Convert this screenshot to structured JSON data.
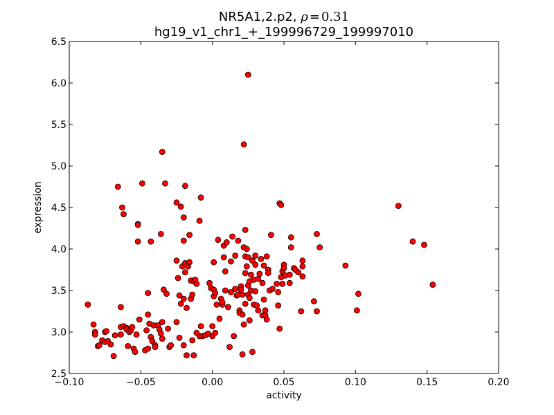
{
  "chart_data": {
    "type": "scatter",
    "title": {
      "prefix": "NR5A1,2.p2, ",
      "rho_symbol": "ρ",
      "equals": "=",
      "rho_value": "0.31"
    },
    "subtitle": "hg19_v1_chr1_+_199996729_199997010",
    "xlabel": "activity",
    "ylabel": "expression",
    "xlim": [
      -0.1,
      0.2
    ],
    "ylim": [
      2.5,
      6.5
    ],
    "xticks": [
      -0.1,
      -0.05,
      0.0,
      0.05,
      0.1,
      0.15,
      0.2
    ],
    "xtick_labels": [
      "−0.10",
      "−0.05",
      "0.00",
      "0.05",
      "0.10",
      "0.15",
      "0.20"
    ],
    "yticks": [
      2.5,
      3.0,
      3.5,
      4.0,
      4.5,
      5.0,
      5.5,
      6.0,
      6.5
    ],
    "ytick_labels": [
      "2.5",
      "3.0",
      "3.5",
      "4.0",
      "4.5",
      "5.0",
      "5.5",
      "6.0",
      "6.5"
    ],
    "grid": false,
    "legend": false,
    "colors": {
      "marker_fill": "#ff0000",
      "marker_edge": "#000000",
      "axes": "#000000",
      "background": "#ffffff"
    },
    "points": [
      [
        -0.087,
        3.33
      ],
      [
        -0.083,
        3.09
      ],
      [
        -0.082,
        3.0
      ],
      [
        -0.082,
        2.97
      ],
      [
        -0.08,
        2.83
      ],
      [
        -0.079,
        2.84
      ],
      [
        -0.077,
        2.9
      ],
      [
        -0.075,
        2.88
      ],
      [
        -0.075,
        3.0
      ],
      [
        -0.074,
        3.01
      ],
      [
        -0.073,
        2.89
      ],
      [
        -0.071,
        2.85
      ],
      [
        -0.069,
        2.71
      ],
      [
        -0.068,
        2.96
      ],
      [
        -0.066,
        4.75
      ],
      [
        -0.064,
        2.97
      ],
      [
        -0.064,
        3.3
      ],
      [
        -0.064,
        3.06
      ],
      [
        -0.063,
        4.5
      ],
      [
        -0.062,
        4.42
      ],
      [
        -0.062,
        3.07
      ],
      [
        -0.06,
        3.05
      ],
      [
        -0.06,
        3.03
      ],
      [
        -0.059,
        2.83
      ],
      [
        -0.058,
        3.0
      ],
      [
        -0.057,
        3.02
      ],
      [
        -0.056,
        3.06
      ],
      [
        -0.055,
        2.8
      ],
      [
        -0.054,
        2.76
      ],
      [
        -0.053,
        2.97
      ],
      [
        -0.052,
        4.3
      ],
      [
        -0.052,
        4.29
      ],
      [
        -0.052,
        4.09
      ],
      [
        -0.051,
        3.15
      ],
      [
        -0.049,
        4.79
      ],
      [
        -0.047,
        2.78
      ],
      [
        -0.046,
        3.02
      ],
      [
        -0.045,
        3.47
      ],
      [
        -0.045,
        3.21
      ],
      [
        -0.045,
        2.8
      ],
      [
        -0.044,
        3.1
      ],
      [
        -0.043,
        4.09
      ],
      [
        -0.043,
        2.94
      ],
      [
        -0.042,
        2.89
      ],
      [
        -0.041,
        3.08
      ],
      [
        -0.04,
        2.84
      ],
      [
        -0.04,
        2.82
      ],
      [
        -0.038,
        3.08
      ],
      [
        -0.037,
        3.03
      ],
      [
        -0.036,
        4.18
      ],
      [
        -0.036,
        2.98
      ],
      [
        -0.035,
        5.17
      ],
      [
        -0.035,
        3.12
      ],
      [
        -0.035,
        2.92
      ],
      [
        -0.034,
        3.51
      ],
      [
        -0.033,
        4.79
      ],
      [
        -0.032,
        3.46
      ],
      [
        -0.031,
        3.04
      ],
      [
        -0.03,
        2.82
      ],
      [
        -0.029,
        2.84
      ],
      [
        -0.025,
        4.56
      ],
      [
        -0.025,
        3.86
      ],
      [
        -0.025,
        3.12
      ],
      [
        -0.024,
        3.65
      ],
      [
        -0.023,
        3.44
      ],
      [
        -0.023,
        2.93
      ],
      [
        -0.022,
        4.51
      ],
      [
        -0.022,
        3.34
      ],
      [
        -0.021,
        3.79
      ],
      [
        -0.02,
        4.38
      ],
      [
        -0.02,
        4.1
      ],
      [
        -0.02,
        3.4
      ],
      [
        -0.02,
        2.84
      ],
      [
        -0.019,
        4.76
      ],
      [
        -0.019,
        3.83
      ],
      [
        -0.019,
        3.72
      ],
      [
        -0.018,
        3.29
      ],
      [
        -0.018,
        2.72
      ],
      [
        -0.017,
        3.79
      ],
      [
        -0.016,
        4.17
      ],
      [
        -0.016,
        3.84
      ],
      [
        -0.015,
        3.4
      ],
      [
        -0.015,
        3.62
      ],
      [
        -0.014,
        3.45
      ],
      [
        -0.014,
        2.9
      ],
      [
        -0.013,
        3.61
      ],
      [
        -0.013,
        2.72
      ],
      [
        -0.012,
        3.63
      ],
      [
        -0.011,
        3.58
      ],
      [
        -0.011,
        2.99
      ],
      [
        -0.009,
        4.34
      ],
      [
        -0.009,
        2.95
      ],
      [
        -0.008,
        4.62
      ],
      [
        -0.008,
        3.07
      ],
      [
        -0.007,
        2.95
      ],
      [
        -0.005,
        2.96
      ],
      [
        -0.003,
        2.98
      ],
      [
        -0.002,
        3.59
      ],
      [
        -0.001,
        3.53
      ],
      [
        0.0,
        2.95
      ],
      [
        0.0,
        3.07
      ],
      [
        0.001,
        3.84
      ],
      [
        0.001,
        3.51
      ],
      [
        0.001,
        3.43
      ],
      [
        0.002,
        3.47
      ],
      [
        0.002,
        2.99
      ],
      [
        0.003,
        3.33
      ],
      [
        0.004,
        4.11
      ],
      [
        0.005,
        3.16
      ],
      [
        0.006,
        3.4
      ],
      [
        0.007,
        3.33
      ],
      [
        0.007,
        3.36
      ],
      [
        0.008,
        4.04
      ],
      [
        0.008,
        3.9
      ],
      [
        0.009,
        3.73
      ],
      [
        0.009,
        3.5
      ],
      [
        0.01,
        4.08
      ],
      [
        0.011,
        3.3
      ],
      [
        0.012,
        2.82
      ],
      [
        0.013,
        3.85
      ],
      [
        0.013,
        3.48
      ],
      [
        0.014,
        4.15
      ],
      [
        0.015,
        2.95
      ],
      [
        0.016,
        3.92
      ],
      [
        0.016,
        3.52
      ],
      [
        0.017,
        3.44
      ],
      [
        0.018,
        4.1
      ],
      [
        0.018,
        3.45
      ],
      [
        0.019,
        3.26
      ],
      [
        0.019,
        3.23
      ],
      [
        0.02,
        3.55
      ],
      [
        0.02,
        3.51
      ],
      [
        0.021,
        3.45
      ],
      [
        0.021,
        3.21
      ],
      [
        0.021,
        2.73
      ],
      [
        0.022,
        5.26
      ],
      [
        0.022,
        4.02
      ],
      [
        0.022,
        3.09
      ],
      [
        0.023,
        4.23
      ],
      [
        0.023,
        3.91
      ],
      [
        0.023,
        3.71
      ],
      [
        0.023,
        3.34
      ],
      [
        0.024,
        4.0
      ],
      [
        0.024,
        3.79
      ],
      [
        0.025,
        6.1
      ],
      [
        0.025,
        3.9
      ],
      [
        0.025,
        3.56
      ],
      [
        0.025,
        3.45
      ],
      [
        0.026,
        3.61
      ],
      [
        0.026,
        3.14
      ],
      [
        0.026,
        3.41
      ],
      [
        0.027,
        3.69
      ],
      [
        0.027,
        3.5
      ],
      [
        0.028,
        3.86
      ],
      [
        0.028,
        2.76
      ],
      [
        0.029,
        3.63
      ],
      [
        0.029,
        3.33
      ],
      [
        0.03,
        3.92
      ],
      [
        0.03,
        3.81
      ],
      [
        0.03,
        3.49
      ],
      [
        0.031,
        3.32
      ],
      [
        0.032,
        3.64
      ],
      [
        0.032,
        3.26
      ],
      [
        0.033,
        3.7
      ],
      [
        0.034,
        3.88
      ],
      [
        0.035,
        3.59
      ],
      [
        0.035,
        3.2
      ],
      [
        0.036,
        3.8
      ],
      [
        0.036,
        3.39
      ],
      [
        0.037,
        3.26
      ],
      [
        0.037,
        3.2
      ],
      [
        0.038,
        3.91
      ],
      [
        0.038,
        3.15
      ],
      [
        0.039,
        3.75
      ],
      [
        0.039,
        3.71
      ],
      [
        0.04,
        3.5
      ],
      [
        0.041,
        4.17
      ],
      [
        0.042,
        3.52
      ],
      [
        0.045,
        3.58
      ],
      [
        0.046,
        3.48
      ],
      [
        0.046,
        3.32
      ],
      [
        0.047,
        3.04
      ],
      [
        0.047,
        4.55
      ],
      [
        0.048,
        4.53
      ],
      [
        0.048,
        3.66
      ],
      [
        0.049,
        3.73
      ],
      [
        0.049,
        3.58
      ],
      [
        0.05,
        3.81
      ],
      [
        0.05,
        3.77
      ],
      [
        0.051,
        3.68
      ],
      [
        0.054,
        3.69
      ],
      [
        0.054,
        3.59
      ],
      [
        0.055,
        4.14
      ],
      [
        0.055,
        4.02
      ],
      [
        0.057,
        3.77
      ],
      [
        0.058,
        3.75
      ],
      [
        0.06,
        3.72
      ],
      [
        0.062,
        3.25
      ],
      [
        0.063,
        3.86
      ],
      [
        0.063,
        3.79
      ],
      [
        0.063,
        3.67
      ],
      [
        0.071,
        3.37
      ],
      [
        0.073,
        4.18
      ],
      [
        0.073,
        3.25
      ],
      [
        0.075,
        4.02
      ],
      [
        0.093,
        3.8
      ],
      [
        0.101,
        3.26
      ],
      [
        0.102,
        3.46
      ],
      [
        0.13,
        4.52
      ],
      [
        0.14,
        4.09
      ],
      [
        0.148,
        4.05
      ],
      [
        0.154,
        3.57
      ]
    ]
  }
}
